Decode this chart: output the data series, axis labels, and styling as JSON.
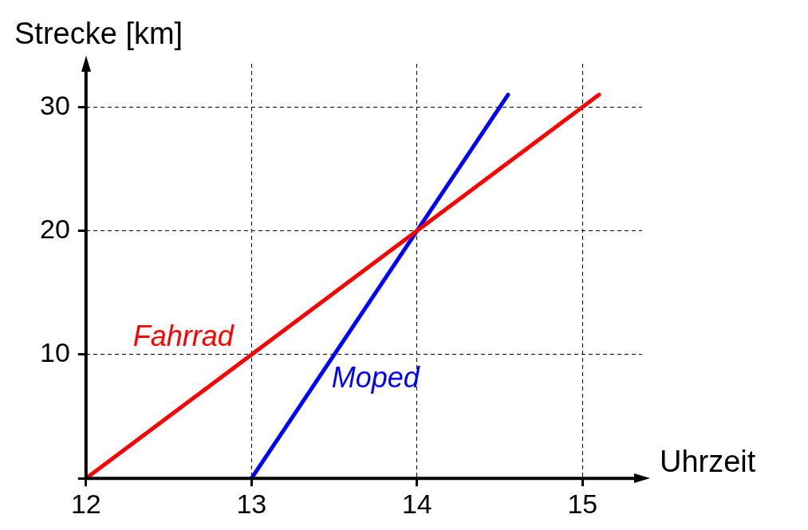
{
  "chart_data": {
    "type": "line",
    "xlabel": "Uhrzeit",
    "ylabel": "Strecke [km]",
    "xlim": [
      12,
      15.36
    ],
    "xticks": [
      12,
      13,
      14,
      15
    ],
    "ylim": [
      0,
      33.5
    ],
    "yticks": [
      {
        "value": 0,
        "label": null
      },
      10,
      20,
      30
    ],
    "grid": true,
    "legend": false,
    "marker": "none",
    "line_style": "solid",
    "series": [
      {
        "name": "Fahrrad",
        "color": "#ff0000",
        "x": [
          12,
          15.1
        ],
        "values": [
          0,
          31
        ]
      },
      {
        "name": "Moped",
        "color": "#0000ff",
        "x": [
          13,
          14.55
        ],
        "values": [
          0,
          31
        ]
      }
    ]
  }
}
